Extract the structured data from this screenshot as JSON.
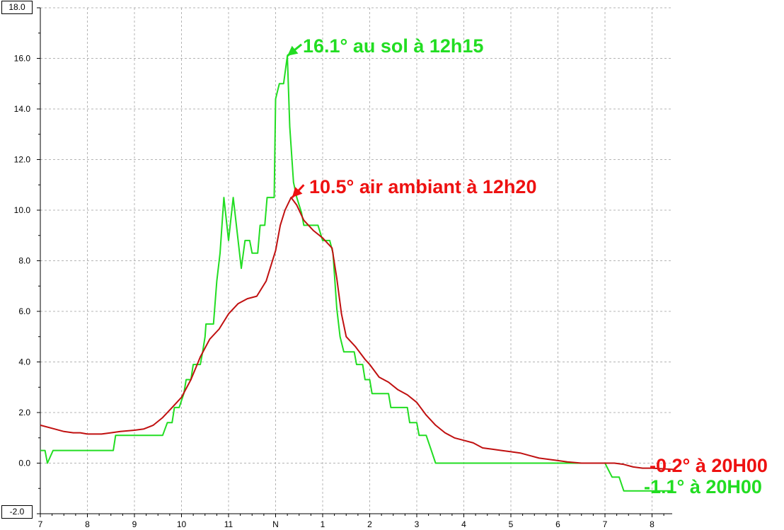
{
  "chart_data": {
    "type": "line",
    "title": "",
    "xlabel": "",
    "ylabel": "",
    "x_ticks": [
      "7",
      "8",
      "9",
      "10",
      "11",
      "N",
      "1",
      "2",
      "3",
      "4",
      "5",
      "6",
      "7",
      "8"
    ],
    "xlim": [
      7,
      20.45
    ],
    "ylim": [
      -2.0,
      18.0
    ],
    "y_ticks": [
      "-2.0",
      "0.0",
      "2.0",
      "4.0",
      "6.0",
      "8.0",
      "10.0",
      "12.0",
      "14.0",
      "16.0",
      "18.0"
    ],
    "y_top_label": "18.0",
    "y_bottom_label": "-2.0",
    "grid": true,
    "series": [
      {
        "color": "#22dd22",
        "step": true,
        "points": [
          [
            7.0,
            0.5
          ],
          [
            7.1,
            0.5
          ],
          [
            7.15,
            0.0
          ],
          [
            7.27,
            0.5
          ],
          [
            8.0,
            0.5
          ],
          [
            8.55,
            0.5
          ],
          [
            8.6,
            1.1
          ],
          [
            9.6,
            1.1
          ],
          [
            9.7,
            1.6
          ],
          [
            9.8,
            1.6
          ],
          [
            9.85,
            2.2
          ],
          [
            9.95,
            2.2
          ],
          [
            10.05,
            2.75
          ],
          [
            10.1,
            3.3
          ],
          [
            10.2,
            3.3
          ],
          [
            10.25,
            3.9
          ],
          [
            10.4,
            3.9
          ],
          [
            10.45,
            4.4
          ],
          [
            10.5,
            5.0
          ],
          [
            10.52,
            5.5
          ],
          [
            10.68,
            5.5
          ],
          [
            10.75,
            7.2
          ],
          [
            10.82,
            8.3
          ],
          [
            10.9,
            10.5
          ],
          [
            11.0,
            8.8
          ],
          [
            11.1,
            10.5
          ],
          [
            11.27,
            7.7
          ],
          [
            11.35,
            8.8
          ],
          [
            11.45,
            8.8
          ],
          [
            11.5,
            8.3
          ],
          [
            11.62,
            8.3
          ],
          [
            11.67,
            9.4
          ],
          [
            11.77,
            9.4
          ],
          [
            11.82,
            10.5
          ],
          [
            11.97,
            10.5
          ],
          [
            12.0,
            14.4
          ],
          [
            12.08,
            15.0
          ],
          [
            12.17,
            15.0
          ],
          [
            12.25,
            16.1
          ],
          [
            12.3,
            13.3
          ],
          [
            12.38,
            11.1
          ],
          [
            12.45,
            10.5
          ],
          [
            12.55,
            9.9
          ],
          [
            12.6,
            9.4
          ],
          [
            12.9,
            9.4
          ],
          [
            13.0,
            8.8
          ],
          [
            13.15,
            8.8
          ],
          [
            13.22,
            8.3
          ],
          [
            13.3,
            6.1
          ],
          [
            13.37,
            5.0
          ],
          [
            13.45,
            4.4
          ],
          [
            13.67,
            4.4
          ],
          [
            13.72,
            3.9
          ],
          [
            13.85,
            3.9
          ],
          [
            13.9,
            3.3
          ],
          [
            14.0,
            3.3
          ],
          [
            14.05,
            2.75
          ],
          [
            14.4,
            2.75
          ],
          [
            14.45,
            2.2
          ],
          [
            14.8,
            2.2
          ],
          [
            14.85,
            1.6
          ],
          [
            15.0,
            1.6
          ],
          [
            15.05,
            1.1
          ],
          [
            15.2,
            1.1
          ],
          [
            15.3,
            0.55
          ],
          [
            15.4,
            0.0
          ],
          [
            19.0,
            0.0
          ],
          [
            19.15,
            -0.55
          ],
          [
            19.3,
            -0.55
          ],
          [
            19.4,
            -1.1
          ],
          [
            20.45,
            -1.1
          ]
        ]
      },
      {
        "color": "#c01010",
        "step": false,
        "points": [
          [
            7.0,
            1.5
          ],
          [
            7.3,
            1.35
          ],
          [
            7.5,
            1.25
          ],
          [
            7.7,
            1.2
          ],
          [
            7.85,
            1.2
          ],
          [
            8.0,
            1.15
          ],
          [
            8.3,
            1.15
          ],
          [
            8.5,
            1.2
          ],
          [
            8.7,
            1.25
          ],
          [
            9.0,
            1.3
          ],
          [
            9.2,
            1.35
          ],
          [
            9.4,
            1.5
          ],
          [
            9.6,
            1.8
          ],
          [
            9.8,
            2.2
          ],
          [
            10.0,
            2.6
          ],
          [
            10.2,
            3.3
          ],
          [
            10.4,
            4.2
          ],
          [
            10.6,
            4.9
          ],
          [
            10.8,
            5.3
          ],
          [
            11.0,
            5.9
          ],
          [
            11.2,
            6.3
          ],
          [
            11.4,
            6.5
          ],
          [
            11.6,
            6.6
          ],
          [
            11.8,
            7.2
          ],
          [
            12.0,
            8.4
          ],
          [
            12.1,
            9.4
          ],
          [
            12.2,
            10.0
          ],
          [
            12.33,
            10.5
          ],
          [
            12.45,
            10.2
          ],
          [
            12.6,
            9.6
          ],
          [
            12.8,
            9.2
          ],
          [
            13.0,
            8.9
          ],
          [
            13.2,
            8.5
          ],
          [
            13.3,
            7.3
          ],
          [
            13.4,
            5.9
          ],
          [
            13.5,
            5.0
          ],
          [
            13.7,
            4.6
          ],
          [
            13.9,
            4.1
          ],
          [
            14.0,
            3.9
          ],
          [
            14.2,
            3.4
          ],
          [
            14.4,
            3.2
          ],
          [
            14.6,
            2.9
          ],
          [
            14.8,
            2.7
          ],
          [
            15.0,
            2.4
          ],
          [
            15.2,
            1.9
          ],
          [
            15.4,
            1.5
          ],
          [
            15.6,
            1.2
          ],
          [
            15.8,
            1.0
          ],
          [
            16.0,
            0.9
          ],
          [
            16.2,
            0.8
          ],
          [
            16.4,
            0.6
          ],
          [
            16.6,
            0.55
          ],
          [
            16.8,
            0.5
          ],
          [
            17.0,
            0.45
          ],
          [
            17.2,
            0.4
          ],
          [
            17.4,
            0.3
          ],
          [
            17.6,
            0.2
          ],
          [
            17.8,
            0.15
          ],
          [
            18.0,
            0.1
          ],
          [
            18.2,
            0.05
          ],
          [
            18.5,
            0.0
          ],
          [
            19.0,
            0.0
          ],
          [
            19.2,
            0.0
          ],
          [
            19.4,
            -0.05
          ],
          [
            19.6,
            -0.15
          ],
          [
            19.8,
            -0.2
          ],
          [
            20.0,
            -0.2
          ],
          [
            20.45,
            -0.25
          ]
        ]
      }
    ],
    "annotations": [
      {
        "text": "16.1° au sol à 12h15",
        "color": "#22dd22",
        "at": [
          12.25,
          16.1
        ],
        "from": [
          12.55,
          16.55
        ]
      },
      {
        "text": "10.5° air ambiant à 12h20",
        "color": "#ee1111",
        "at": [
          12.35,
          10.5
        ],
        "from": [
          12.6,
          11.0
        ]
      },
      {
        "text": "-0.2° à 20H00",
        "color": "#ee1111",
        "at": [
          20.0,
          -0.2
        ],
        "from": null
      },
      {
        "text": "-1.1° à 20H00",
        "color": "#22dd22",
        "at": [
          20.0,
          -1.1
        ],
        "from": null
      }
    ]
  }
}
